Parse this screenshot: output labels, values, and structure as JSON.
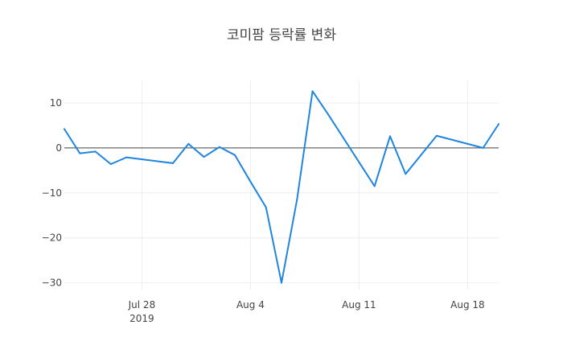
{
  "chart_data": {
    "type": "line",
    "title": "코미팜 등락률 변화",
    "xlabel": "",
    "ylabel": "",
    "x_range": [
      "2019-07-23",
      "2019-08-20"
    ],
    "ylim": [
      -31.5,
      15.0
    ],
    "grid": true,
    "zero_line": true,
    "line_color": "#1f85de",
    "x_ticks": [
      {
        "date": "2019-07-28",
        "label": "Jul 28",
        "sublabel": "2019"
      },
      {
        "date": "2019-08-04",
        "label": "Aug 4",
        "sublabel": ""
      },
      {
        "date": "2019-08-11",
        "label": "Aug 11",
        "sublabel": ""
      },
      {
        "date": "2019-08-18",
        "label": "Aug 18",
        "sublabel": ""
      }
    ],
    "y_ticks": [
      {
        "value": 10,
        "label": "10"
      },
      {
        "value": 0,
        "label": "0"
      },
      {
        "value": -10,
        "label": "−10"
      },
      {
        "value": -20,
        "label": "−20"
      },
      {
        "value": -30,
        "label": "−30"
      }
    ],
    "series": [
      {
        "x": [
          "2019-07-23",
          "2019-07-24",
          "2019-07-25",
          "2019-07-26",
          "2019-07-27",
          "2019-07-30",
          "2019-07-31",
          "2019-08-01",
          "2019-08-02",
          "2019-08-03",
          "2019-08-04",
          "2019-08-05",
          "2019-08-06",
          "2019-08-07",
          "2019-08-08",
          "2019-08-09",
          "2019-08-12",
          "2019-08-13",
          "2019-08-14",
          "2019-08-16",
          "2019-08-19",
          "2019-08-20"
        ],
        "y": [
          4.2,
          -1.2,
          -0.8,
          -3.6,
          -2.1,
          -3.4,
          0.9,
          -2.0,
          0.2,
          -1.6,
          -7.5,
          -13.2,
          -30.0,
          -11.5,
          12.6,
          7.5,
          -8.5,
          2.6,
          -5.8,
          2.7,
          0.0,
          5.3
        ]
      }
    ]
  }
}
